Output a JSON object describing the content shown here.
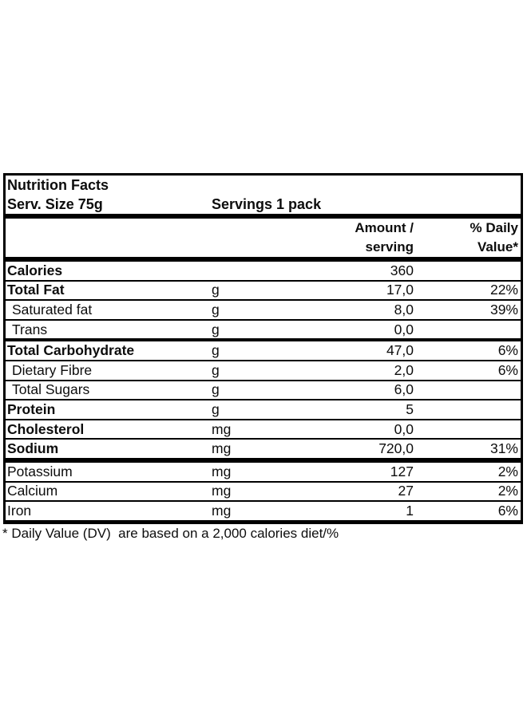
{
  "header": {
    "title": "Nutrition Facts",
    "serving_size": "Serv. Size 75g",
    "servings": "Servings 1 pack"
  },
  "columns": {
    "amount_line1": "Amount /",
    "amount_line2": "serving",
    "dv_line1": "% Daily",
    "dv_line2": "Value*"
  },
  "rows": [
    {
      "label": "Calories",
      "unit": "",
      "amount": "360",
      "dv": ""
    },
    {
      "label": "Total Fat",
      "unit": "g",
      "amount": "17,0",
      "dv": "22%"
    },
    {
      "label": "Saturated fat",
      "unit": "g",
      "amount": "8,0",
      "dv": "39%"
    },
    {
      "label": "Trans",
      "unit": "g",
      "amount": "0,0",
      "dv": ""
    },
    {
      "label": "Total Carbohydrate",
      "unit": "g",
      "amount": "47,0",
      "dv": "6%"
    },
    {
      "label": "Dietary Fibre",
      "unit": "g",
      "amount": "2,0",
      "dv": "6%"
    },
    {
      "label": "Total Sugars",
      "unit": "g",
      "amount": "6,0",
      "dv": ""
    },
    {
      "label": "Protein",
      "unit": "g",
      "amount": "5",
      "dv": ""
    },
    {
      "label": "Cholesterol",
      "unit": "mg",
      "amount": "0,0",
      "dv": ""
    },
    {
      "label": "Sodium",
      "unit": "mg",
      "amount": "720,0",
      "dv": "31%"
    },
    {
      "label": "Potassium",
      "unit": "mg",
      "amount": "127",
      "dv": "2%"
    },
    {
      "label": "Calcium",
      "unit": "mg",
      "amount": "27",
      "dv": "2%"
    },
    {
      "label": "Iron",
      "unit": "mg",
      "amount": "1",
      "dv": "6%"
    }
  ],
  "footnote": "* Daily Value (DV)  are based on a 2,000 calories diet/%",
  "colors": {
    "text": "#0d0d0d",
    "border": "#000000",
    "background": "#ffffff"
  }
}
